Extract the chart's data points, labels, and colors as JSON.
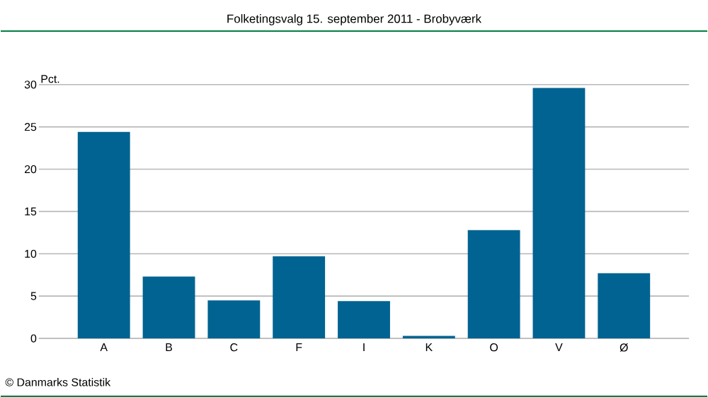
{
  "chart_data": {
    "type": "bar",
    "title": "Folketingsvalg 15. september 2011 - Brobyværk",
    "ylabel": "Pct.",
    "categories": [
      "A",
      "B",
      "C",
      "F",
      "I",
      "K",
      "O",
      "V",
      "Ø"
    ],
    "values": [
      24.4,
      7.3,
      4.5,
      9.7,
      4.4,
      0.3,
      12.8,
      29.6,
      7.7
    ],
    "color": "#006391",
    "ylim": [
      0,
      30
    ],
    "yticks": [
      0,
      5,
      10,
      15,
      20,
      25,
      30
    ],
    "grid": "y",
    "annotations": [
      "© Danmarks Statistik"
    ]
  }
}
